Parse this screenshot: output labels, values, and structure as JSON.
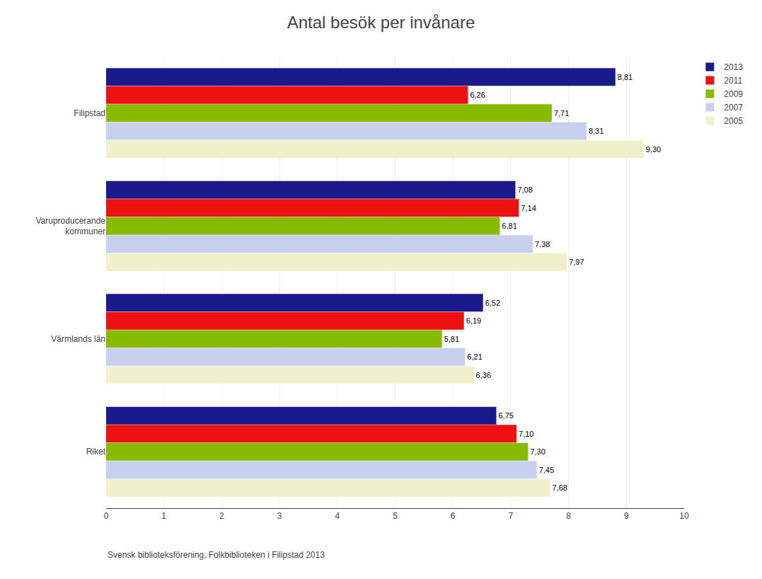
{
  "chart_data": {
    "type": "bar",
    "orientation": "horizontal",
    "title": "Antal besök per invånare",
    "categories": [
      "Filipstad",
      "Varuproducerande\nkommuner",
      "Värmlands län",
      "Riket"
    ],
    "series": [
      {
        "name": "2013",
        "color": "#1a1a8c",
        "values": [
          8.81,
          7.08,
          6.52,
          6.75
        ],
        "value_labels": [
          "8,81",
          "7,08",
          "6,52",
          "6,75"
        ]
      },
      {
        "name": "2011",
        "color": "#ee1111",
        "values": [
          6.26,
          7.14,
          6.19,
          7.1
        ],
        "value_labels": [
          "6,26",
          "7,14",
          "6,19",
          "7,10"
        ]
      },
      {
        "name": "2009",
        "color": "#88bb00",
        "values": [
          7.71,
          6.81,
          5.81,
          7.3
        ],
        "value_labels": [
          "7,71",
          "6,81",
          "5,81",
          "7,30"
        ]
      },
      {
        "name": "2007",
        "color": "#c8d0f0",
        "values": [
          8.31,
          7.38,
          6.21,
          7.45
        ],
        "value_labels": [
          "8,31",
          "7,38",
          "6,21",
          "7,45"
        ]
      },
      {
        "name": "2005",
        "color": "#f0f0cc",
        "values": [
          9.3,
          7.97,
          6.36,
          7.68
        ],
        "value_labels": [
          "9,30",
          "7,97",
          "6,36",
          "7,68"
        ]
      }
    ],
    "xlim": [
      0,
      10
    ],
    "xticks": [
      0,
      1,
      2,
      3,
      4,
      5,
      6,
      7,
      8,
      9,
      10
    ],
    "grid": true,
    "legend": "upper right",
    "data_labels": true,
    "annotations": [
      "Svensk biblioteksförening, Folkbiblioteken i Filipstad 2013"
    ]
  }
}
